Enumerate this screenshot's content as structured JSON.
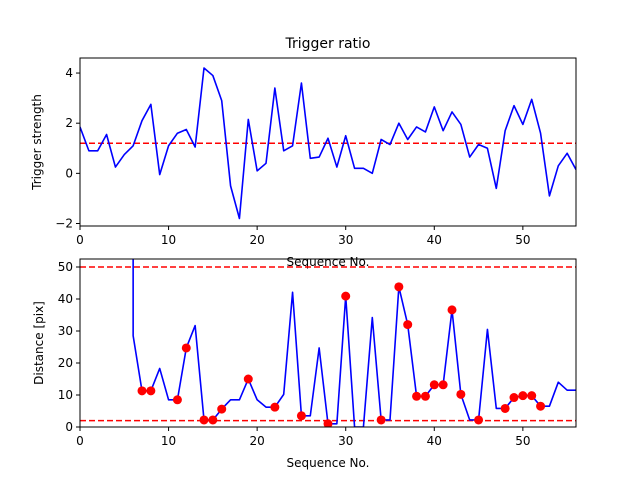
{
  "chart_data": [
    {
      "type": "line",
      "title": "Trigger ratio",
      "xlabel": "Sequence No.",
      "ylabel": "Trigger strength",
      "xlim": [
        0,
        56
      ],
      "ylim": [
        -2.1,
        4.6
      ],
      "xticks": [
        0,
        10,
        20,
        30,
        40,
        50
      ],
      "yticks": [
        -2,
        0,
        2,
        4
      ],
      "line_color": "#0000ff",
      "threshold_color": "#ff0000",
      "series": [
        {
          "x": [
            0,
            1,
            2,
            3,
            4,
            5,
            6,
            7,
            8,
            9,
            10,
            11,
            12,
            13,
            14,
            15,
            16,
            17,
            18,
            19,
            20,
            21,
            22,
            23,
            24,
            25,
            26,
            27,
            28,
            29,
            30,
            31,
            32,
            33,
            34,
            35,
            36,
            37,
            38,
            39,
            40,
            41,
            42,
            43,
            44,
            45,
            46,
            47,
            48,
            49,
            50,
            51,
            52,
            53,
            54,
            55,
            56
          ],
          "values": [
            1.85,
            0.9,
            0.9,
            1.55,
            0.25,
            0.75,
            1.1,
            2.1,
            2.75,
            -0.05,
            1.1,
            1.6,
            1.75,
            1.05,
            4.2,
            3.9,
            2.9,
            -0.5,
            -1.8,
            2.15,
            0.1,
            0.4,
            3.4,
            0.9,
            1.1,
            3.6,
            0.6,
            0.65,
            1.4,
            0.25,
            1.5,
            0.2,
            0.2,
            0.0,
            1.35,
            1.15,
            2.0,
            1.35,
            1.85,
            1.65,
            2.65,
            1.7,
            2.45,
            1.95,
            0.65,
            1.15,
            1.0,
            -0.6,
            1.7,
            2.7,
            1.95,
            2.95,
            1.6,
            -0.9,
            0.3,
            0.8,
            0.15
          ]
        }
      ],
      "thresholds": [
        1.2
      ]
    },
    {
      "type": "line",
      "title": "",
      "xlabel": "Sequence No.",
      "ylabel": "Distance [pix]",
      "xlim": [
        0,
        56
      ],
      "ylim": [
        0,
        52.5
      ],
      "xticks": [
        0,
        10,
        20,
        30,
        40,
        50
      ],
      "yticks": [
        0,
        10,
        20,
        30,
        40,
        50
      ],
      "line_color": "#0000ff",
      "marker_color": "#ff0000",
      "threshold_color": "#ff0000",
      "series": [
        {
          "x": [
            6,
            6,
            7,
            8,
            9,
            10,
            11,
            12,
            13,
            14,
            15,
            16,
            17,
            18,
            19,
            20,
            21,
            22,
            23,
            24,
            25,
            26,
            27,
            28,
            29,
            30,
            31,
            32,
            33,
            34,
            35,
            36,
            37,
            38,
            39,
            40,
            41,
            42,
            43,
            44,
            45,
            46,
            47,
            48,
            49,
            50,
            51,
            52,
            53,
            54,
            55,
            56
          ],
          "values": [
            52.5,
            28.5,
            11.3,
            11.3,
            18.3,
            8.5,
            8.5,
            24.7,
            31.7,
            2.2,
            2.2,
            5.6,
            8.5,
            8.5,
            15.0,
            8.5,
            6.2,
            6.2,
            10.2,
            42.1,
            3.5,
            3.5,
            24.7,
            1.0,
            1.0,
            40.9,
            0.0,
            0.0,
            34.2,
            2.2,
            2.2,
            43.8,
            32.0,
            9.6,
            9.6,
            13.2,
            13.2,
            36.6,
            10.2,
            2.2,
            2.2,
            30.5,
            5.8,
            5.8,
            9.2,
            9.8,
            9.8,
            6.5,
            6.5,
            14.0,
            11.5,
            11.5
          ]
        }
      ],
      "markers": {
        "x": [
          7,
          8,
          11,
          12,
          14,
          15,
          16,
          19,
          22,
          25,
          28,
          30,
          34,
          36,
          37,
          38,
          39,
          40,
          41,
          42,
          43,
          45,
          48,
          49,
          50,
          51,
          52
        ],
        "values": [
          11.3,
          11.3,
          8.5,
          24.7,
          2.2,
          2.2,
          5.6,
          15.0,
          6.2,
          3.5,
          1.0,
          40.9,
          2.2,
          43.8,
          32.0,
          9.6,
          9.6,
          13.2,
          13.2,
          36.6,
          10.2,
          2.2,
          5.8,
          9.2,
          9.8,
          9.8,
          6.5
        ]
      },
      "thresholds": [
        50,
        2
      ]
    }
  ]
}
